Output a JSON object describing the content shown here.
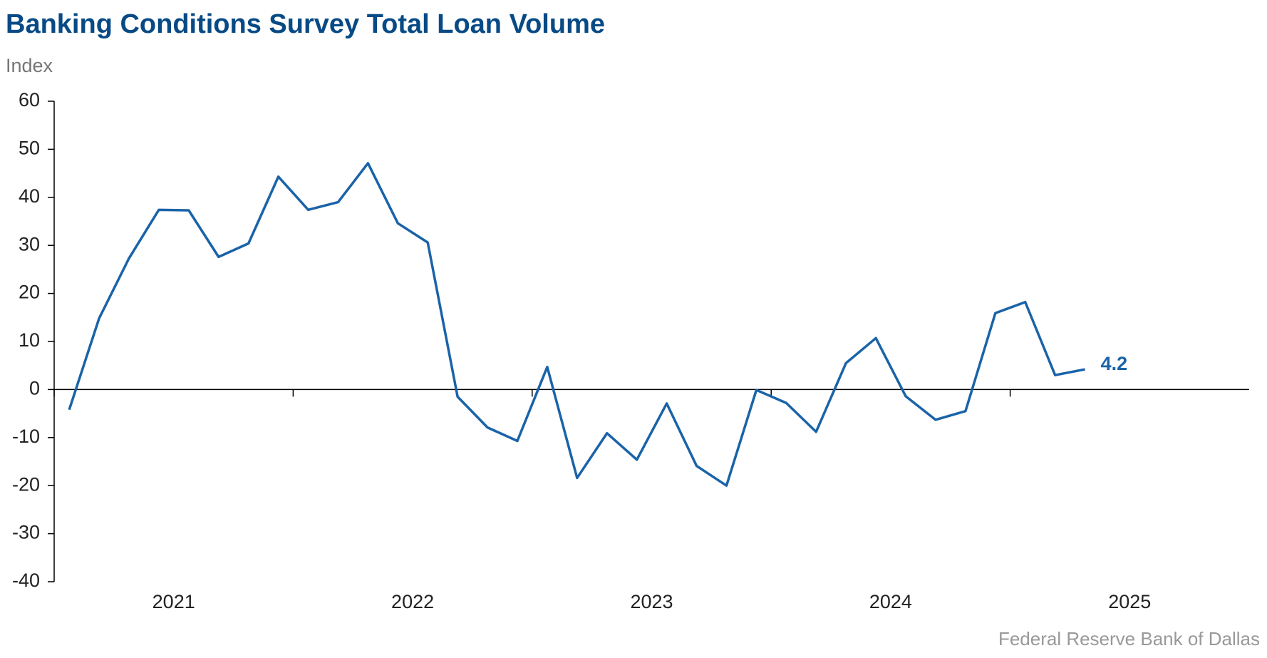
{
  "chart_data": {
    "type": "line",
    "title": "Banking Conditions Survey Total Loan Volume",
    "y_label": "Index",
    "source": "Federal Reserve Bank of Dallas",
    "x": [
      2021.063,
      2021.188,
      2021.313,
      2021.438,
      2021.563,
      2021.688,
      2021.813,
      2021.938,
      2022.063,
      2022.188,
      2022.313,
      2022.438,
      2022.563,
      2022.688,
      2022.813,
      2022.938,
      2023.063,
      2023.188,
      2023.313,
      2023.438,
      2023.563,
      2023.688,
      2023.813,
      2023.938,
      2024.063,
      2024.188,
      2024.313,
      2024.438,
      2024.563,
      2024.688,
      2024.813,
      2024.938,
      2025.063,
      2025.188,
      2025.313
    ],
    "values": [
      -4.2,
      14.8,
      27.3,
      37.4,
      37.3,
      27.6,
      30.4,
      44.3,
      37.4,
      39.0,
      47.1,
      34.6,
      30.6,
      -1.5,
      -7.9,
      -10.7,
      4.7,
      -18.4,
      -9.1,
      -14.6,
      -2.9,
      -15.9,
      -20.0,
      -0.1,
      -2.8,
      -8.8,
      5.5,
      10.7,
      -1.4,
      -6.3,
      -4.5,
      15.9,
      18.2,
      3.0,
      4.2
    ],
    "color": "#1a63a8",
    "xlim": [
      2021,
      2026
    ],
    "xticks": [
      2021,
      2022,
      2023,
      2024,
      2025
    ],
    "ylim": [
      -40,
      60
    ],
    "yticks": [
      -40,
      -30,
      -20,
      -10,
      0,
      10,
      20,
      30,
      40,
      50,
      60
    ]
  }
}
